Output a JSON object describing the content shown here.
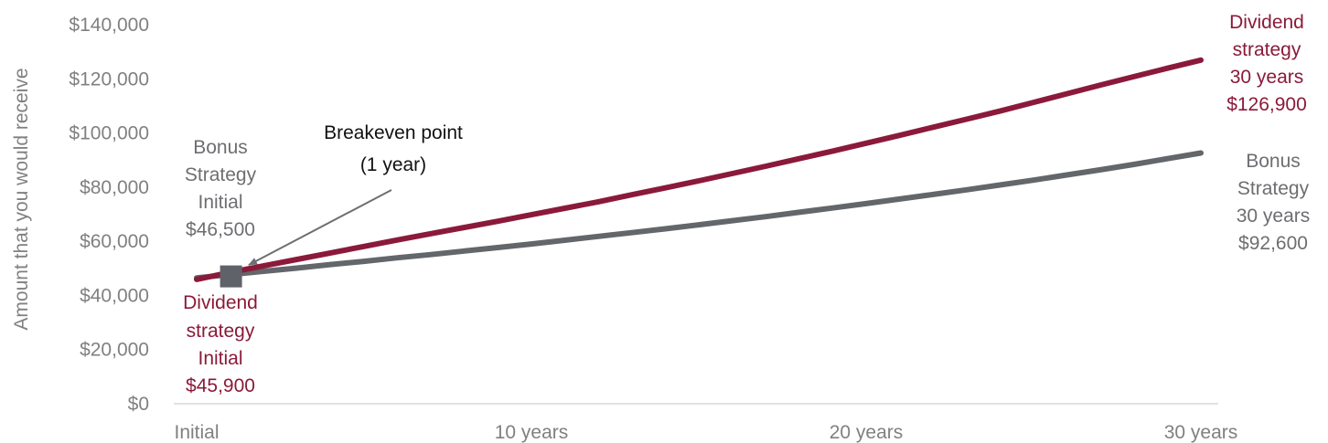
{
  "colors": {
    "dividend": "#8b1a3a",
    "bonus": "#63666a",
    "axis": "#d9d9d9",
    "text_gray": "#808080",
    "annotation_gray": "#6d6e71"
  },
  "chart_data": {
    "type": "line",
    "title": "",
    "xlabel": "",
    "ylabel": "Amount  that you would receive",
    "x": [
      0,
      1,
      2,
      3,
      4,
      5,
      6,
      7,
      8,
      9,
      10,
      11,
      12,
      13,
      14,
      15,
      16,
      17,
      18,
      19,
      20,
      21,
      22,
      23,
      24,
      25,
      26,
      27,
      28,
      29,
      30
    ],
    "x_ticks": [
      {
        "value": 0,
        "label": "Initial"
      },
      {
        "value": 10,
        "label": "10 years"
      },
      {
        "value": 20,
        "label": "20 years"
      },
      {
        "value": 30,
        "label": "30 years"
      }
    ],
    "y_ticks": [
      {
        "value": 0,
        "label": "$0"
      },
      {
        "value": 20000,
        "label": "$20,000"
      },
      {
        "value": 40000,
        "label": "$40,000"
      },
      {
        "value": 60000,
        "label": "$60,000"
      },
      {
        "value": 80000,
        "label": "$80,000"
      },
      {
        "value": 100000,
        "label": "$100,000"
      },
      {
        "value": 120000,
        "label": "$120,000"
      },
      {
        "value": 140000,
        "label": "$140,000"
      }
    ],
    "xlim": [
      0,
      30
    ],
    "ylim": [
      0,
      140000
    ],
    "grid": false,
    "series": [
      {
        "key": "dividend",
        "values": [
          45900,
          48500,
          50900,
          53300,
          55700,
          58100,
          60500,
          62800,
          65100,
          67400,
          69800,
          72200,
          74600,
          77200,
          79700,
          82300,
          85000,
          87700,
          90500,
          93300,
          96200,
          99100,
          102100,
          105100,
          108100,
          111300,
          114500,
          117700,
          120800,
          123900,
          126900
        ]
      },
      {
        "key": "bonus",
        "values": [
          46500,
          47700,
          48900,
          50100,
          51400,
          52600,
          53900,
          55100,
          56400,
          57700,
          59000,
          60400,
          61800,
          63200,
          64600,
          66100,
          67600,
          69100,
          70700,
          72300,
          73900,
          75600,
          77300,
          79000,
          80800,
          82600,
          84500,
          86400,
          88400,
          90500,
          92600
        ]
      }
    ],
    "breakeven": {
      "x": 1,
      "y": 47700
    }
  },
  "annotations": {
    "breakeven": {
      "line1": "Breakeven point",
      "line2": "(1 year)"
    },
    "bonus_initial": [
      "Bonus",
      "Strategy",
      "Initial",
      "$46,500"
    ],
    "dividend_initial": [
      "Dividend",
      "strategy",
      "Initial",
      "$45,900"
    ],
    "dividend_30": [
      "Dividend",
      "strategy",
      "30 years",
      "$126,900"
    ],
    "bonus_30": [
      "Bonus",
      "Strategy",
      "30 years",
      "$92,600"
    ]
  }
}
